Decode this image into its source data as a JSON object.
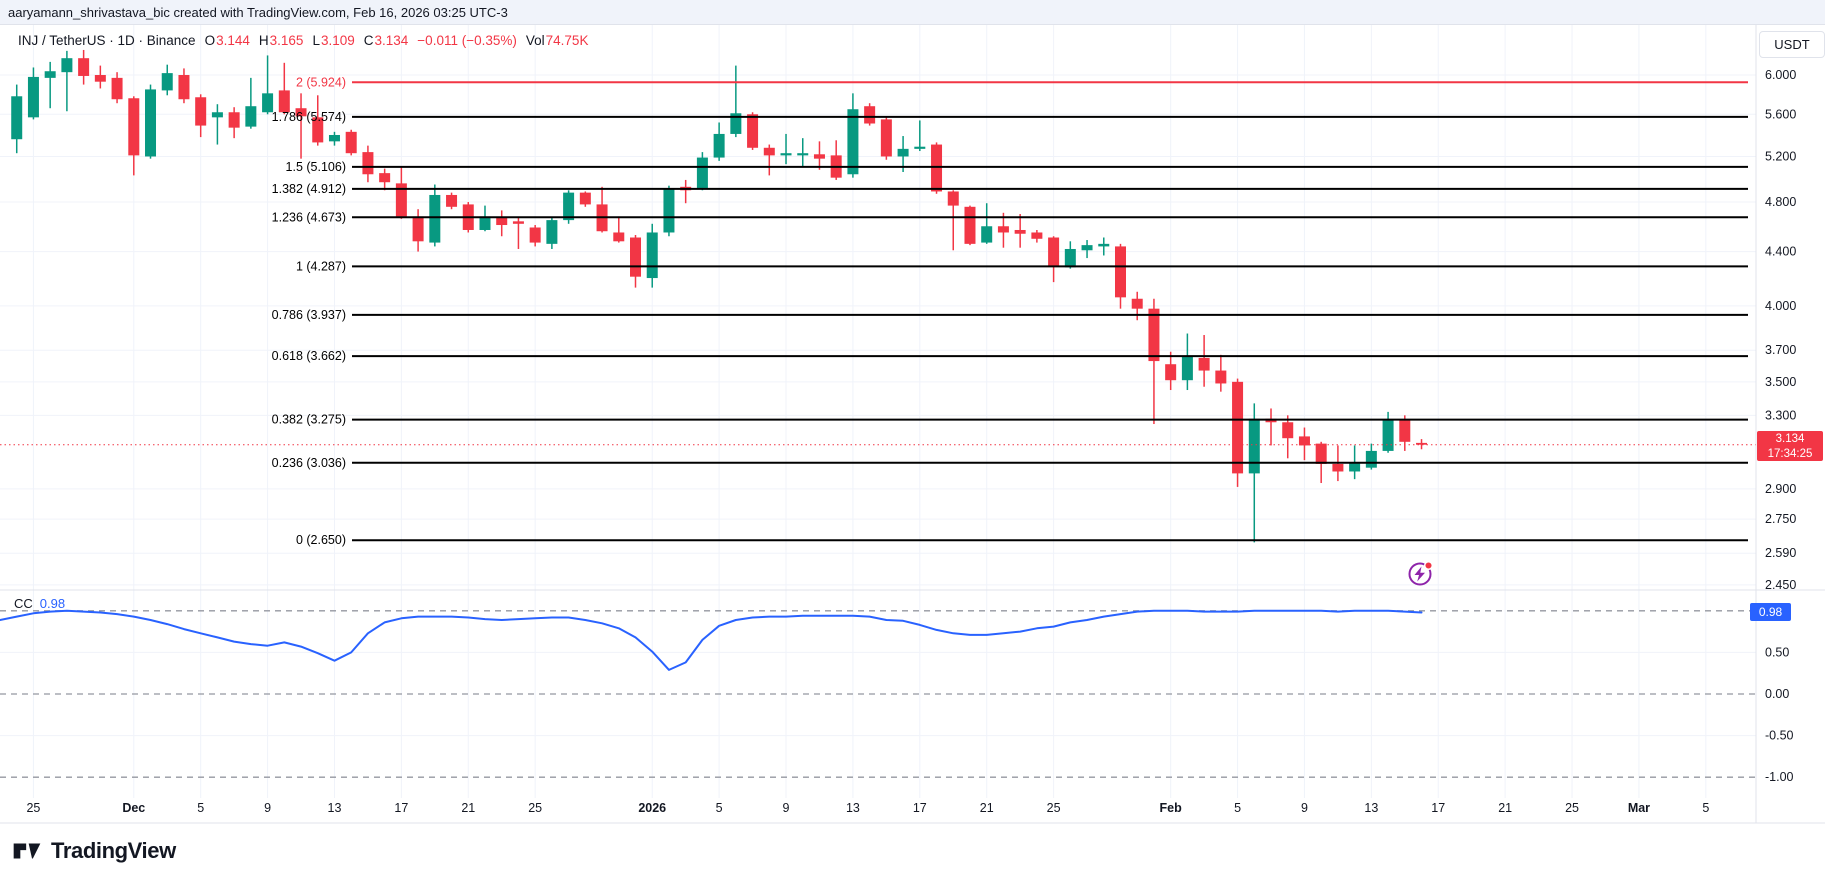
{
  "topbar": {
    "attribution": "aaryamann_shrivastava_bic created with TradingView.com, Feb 16, 2026 03:25 UTC-3"
  },
  "legend": {
    "symbol": "INJ / TetherUS · 1D · Binance",
    "o_label": "O",
    "o": "3.144",
    "h_label": "H",
    "h": "3.165",
    "l_label": "L",
    "l": "3.109",
    "c_label": "C",
    "c": "3.134",
    "change": "−0.011 (−0.35%)",
    "vol_label": "Vol",
    "vol": "74.75K"
  },
  "price_axis": {
    "currency": "USDT",
    "ticks": [
      "6.000",
      "5.600",
      "5.200",
      "4.800",
      "4.400",
      "4.000",
      "3.700",
      "3.500",
      "3.300",
      "2.900",
      "2.750",
      "2.590",
      "2.450"
    ],
    "last_price": "3.134",
    "countdown": "17:34:25"
  },
  "indicator": {
    "name": "CC",
    "value": "0.98",
    "ticks": [
      {
        "label": "0.50",
        "v": 0.5
      },
      {
        "label": "0.00",
        "v": 0.0
      },
      {
        "label": "-0.50",
        "v": -0.5
      },
      {
        "label": "-1.00",
        "v": -1.0
      }
    ],
    "dashed_levels": [
      1.0,
      0.0,
      -1.0
    ],
    "solid_grid_levels": [
      0.5,
      -0.5
    ]
  },
  "time_axis": {
    "ticks": [
      {
        "label": "25",
        "day": 1
      },
      {
        "label": "Dec",
        "day": 7,
        "bold": true
      },
      {
        "label": "5",
        "day": 11
      },
      {
        "label": "9",
        "day": 15
      },
      {
        "label": "13",
        "day": 19
      },
      {
        "label": "17",
        "day": 23
      },
      {
        "label": "21",
        "day": 27
      },
      {
        "label": "25",
        "day": 31
      },
      {
        "label": "2026",
        "day": 38,
        "bold": true
      },
      {
        "label": "5",
        "day": 42
      },
      {
        "label": "9",
        "day": 46
      },
      {
        "label": "13",
        "day": 50
      },
      {
        "label": "17",
        "day": 54
      },
      {
        "label": "21",
        "day": 58
      },
      {
        "label": "25",
        "day": 62
      },
      {
        "label": "Feb",
        "day": 69,
        "bold": true
      },
      {
        "label": "5",
        "day": 73
      },
      {
        "label": "9",
        "day": 77
      },
      {
        "label": "13",
        "day": 81
      },
      {
        "label": "17",
        "day": 85
      },
      {
        "label": "21",
        "day": 89
      },
      {
        "label": "25",
        "day": 93
      },
      {
        "label": "Mar",
        "day": 97,
        "bold": true
      },
      {
        "label": "5",
        "day": 101
      }
    ]
  },
  "chart_data": [
    {
      "type": "candlestick",
      "title": "INJ / TetherUS 1D Binance",
      "ylog": true,
      "ylim": [
        2.428,
        6.551
      ],
      "xlim_days": [
        -1,
        104
      ],
      "start_day": 0,
      "ohlc": [
        [
          5.36,
          5.9,
          5.23,
          5.78
        ],
        [
          5.57,
          6.08,
          5.55,
          5.98
        ],
        [
          5.97,
          6.14,
          5.66,
          6.04
        ],
        [
          6.03,
          6.26,
          5.63,
          6.18
        ],
        [
          6.18,
          6.27,
          5.9,
          5.99
        ],
        [
          6.0,
          6.1,
          5.86,
          5.93
        ],
        [
          5.97,
          6.03,
          5.71,
          5.75
        ],
        [
          5.76,
          5.78,
          5.03,
          5.21
        ],
        [
          5.2,
          5.9,
          5.18,
          5.85
        ],
        [
          5.84,
          6.11,
          5.79,
          6.02
        ],
        [
          6.0,
          6.07,
          5.71,
          5.75
        ],
        [
          5.77,
          5.8,
          5.38,
          5.49
        ],
        [
          5.57,
          5.7,
          5.31,
          5.62
        ],
        [
          5.62,
          5.67,
          5.37,
          5.47
        ],
        [
          5.48,
          5.97,
          5.46,
          5.68
        ],
        [
          5.62,
          6.21,
          5.6,
          5.81
        ],
        [
          5.84,
          6.13,
          5.6,
          5.62
        ],
        [
          5.66,
          5.81,
          5.18,
          5.58
        ],
        [
          5.57,
          5.79,
          5.3,
          5.33
        ],
        [
          5.34,
          5.43,
          5.3,
          5.4
        ],
        [
          5.43,
          5.45,
          5.21,
          5.23
        ],
        [
          5.24,
          5.3,
          4.97,
          5.04
        ],
        [
          5.05,
          5.09,
          4.9,
          4.97
        ],
        [
          4.96,
          5.11,
          4.66,
          4.68
        ],
        [
          4.68,
          4.74,
          4.4,
          4.48
        ],
        [
          4.47,
          4.95,
          4.44,
          4.86
        ],
        [
          4.86,
          4.88,
          4.74,
          4.76
        ],
        [
          4.78,
          4.8,
          4.55,
          4.57
        ],
        [
          4.57,
          4.77,
          4.56,
          4.68
        ],
        [
          4.67,
          4.73,
          4.52,
          4.61
        ],
        [
          4.64,
          4.67,
          4.42,
          4.62
        ],
        [
          4.59,
          4.61,
          4.44,
          4.47
        ],
        [
          4.46,
          4.67,
          4.42,
          4.65
        ],
        [
          4.65,
          4.9,
          4.62,
          4.88
        ],
        [
          4.88,
          4.89,
          4.76,
          4.78
        ],
        [
          4.78,
          4.93,
          4.55,
          4.56
        ],
        [
          4.55,
          4.68,
          4.47,
          4.48
        ],
        [
          4.51,
          4.53,
          4.13,
          4.21
        ],
        [
          4.2,
          4.62,
          4.13,
          4.55
        ],
        [
          4.55,
          4.94,
          4.52,
          4.91
        ],
        [
          4.93,
          4.99,
          4.79,
          4.9
        ],
        [
          4.92,
          5.24,
          4.9,
          5.19
        ],
        [
          5.19,
          5.52,
          5.16,
          5.41
        ],
        [
          5.41,
          6.1,
          5.38,
          5.61
        ],
        [
          5.6,
          5.62,
          5.26,
          5.28
        ],
        [
          5.28,
          5.31,
          5.03,
          5.21
        ],
        [
          5.21,
          5.41,
          5.13,
          5.23
        ],
        [
          5.21,
          5.37,
          5.11,
          5.23
        ],
        [
          5.22,
          5.34,
          5.08,
          5.18
        ],
        [
          5.21,
          5.35,
          4.99,
          5.01
        ],
        [
          5.04,
          5.81,
          5.01,
          5.65
        ],
        [
          5.68,
          5.71,
          5.49,
          5.51
        ],
        [
          5.55,
          5.57,
          5.17,
          5.2
        ],
        [
          5.2,
          5.39,
          5.06,
          5.27
        ],
        [
          5.27,
          5.54,
          5.25,
          5.29
        ],
        [
          5.31,
          5.33,
          4.87,
          4.89
        ],
        [
          4.89,
          4.9,
          4.41,
          4.77
        ],
        [
          4.76,
          4.77,
          4.45,
          4.46
        ],
        [
          4.47,
          4.79,
          4.46,
          4.6
        ],
        [
          4.6,
          4.71,
          4.43,
          4.55
        ],
        [
          4.57,
          4.7,
          4.43,
          4.54
        ],
        [
          4.55,
          4.57,
          4.47,
          4.5
        ],
        [
          4.51,
          4.52,
          4.17,
          4.29
        ],
        [
          4.28,
          4.48,
          4.27,
          4.42
        ],
        [
          4.41,
          4.49,
          4.35,
          4.45
        ],
        [
          4.44,
          4.51,
          4.37,
          4.46
        ],
        [
          4.44,
          4.46,
          3.98,
          4.06
        ],
        [
          4.05,
          4.1,
          3.9,
          3.98
        ],
        [
          3.98,
          4.05,
          3.25,
          3.63
        ],
        [
          3.61,
          3.69,
          3.45,
          3.51
        ],
        [
          3.51,
          3.81,
          3.45,
          3.66
        ],
        [
          3.65,
          3.8,
          3.47,
          3.57
        ],
        [
          3.57,
          3.67,
          3.44,
          3.49
        ],
        [
          3.5,
          3.52,
          2.91,
          2.98
        ],
        [
          2.98,
          3.37,
          2.64,
          3.28
        ],
        [
          3.28,
          3.34,
          3.13,
          3.26
        ],
        [
          3.26,
          3.3,
          3.06,
          3.17
        ],
        [
          3.18,
          3.23,
          3.05,
          3.13
        ],
        [
          3.14,
          3.15,
          2.93,
          3.03
        ],
        [
          3.03,
          3.13,
          2.94,
          2.99
        ],
        [
          2.99,
          3.13,
          2.95,
          3.04
        ],
        [
          3.01,
          3.14,
          3.0,
          3.1
        ],
        [
          3.1,
          3.32,
          3.09,
          3.27
        ],
        [
          3.27,
          3.3,
          3.1,
          3.15
        ],
        [
          3.144,
          3.165,
          3.109,
          3.134
        ]
      ],
      "price_line_value": 3.134,
      "fib_levels": [
        {
          "label": "2 (5.924)",
          "price": 5.924,
          "color": "#f23645"
        },
        {
          "label": "1.786 (5.574)",
          "price": 5.574,
          "color": "#000000"
        },
        {
          "label": "1.5 (5.106)",
          "price": 5.106,
          "color": "#000000"
        },
        {
          "label": "1.382 (4.912)",
          "price": 4.912,
          "color": "#000000"
        },
        {
          "label": "1.236 (4.673)",
          "price": 4.673,
          "color": "#000000"
        },
        {
          "label": "1 (4.287)",
          "price": 4.287,
          "color": "#000000"
        },
        {
          "label": "0.786 (3.937)",
          "price": 3.937,
          "color": "#000000"
        },
        {
          "label": "0.618 (3.662)",
          "price": 3.662,
          "color": "#000000"
        },
        {
          "label": "0.382 (3.275)",
          "price": 3.275,
          "color": "#000000"
        },
        {
          "label": "0.236 (3.036)",
          "price": 3.036,
          "color": "#000000"
        },
        {
          "label": "0 (2.650)",
          "price": 2.65,
          "color": "#000000"
        }
      ]
    },
    {
      "type": "line",
      "name": "CC",
      "ylim": [
        -1.25,
        1.25
      ],
      "start_day": -1,
      "values": [
        0.89,
        0.93,
        0.97,
        0.99,
        1.0,
        0.99,
        0.98,
        0.96,
        0.93,
        0.89,
        0.84,
        0.78,
        0.73,
        0.68,
        0.63,
        0.6,
        0.58,
        0.62,
        0.57,
        0.49,
        0.4,
        0.5,
        0.73,
        0.86,
        0.91,
        0.93,
        0.93,
        0.93,
        0.92,
        0.9,
        0.89,
        0.9,
        0.91,
        0.92,
        0.92,
        0.89,
        0.85,
        0.79,
        0.68,
        0.51,
        0.29,
        0.38,
        0.65,
        0.82,
        0.89,
        0.92,
        0.93,
        0.93,
        0.94,
        0.94,
        0.94,
        0.94,
        0.93,
        0.89,
        0.88,
        0.83,
        0.77,
        0.73,
        0.71,
        0.71,
        0.73,
        0.75,
        0.79,
        0.81,
        0.86,
        0.89,
        0.93,
        0.96,
        0.99,
        1.0,
        1.0,
        1.0,
        0.99,
        0.99,
        0.99,
        1.0,
        1.0,
        1.0,
        1.0,
        1.0,
        0.99,
        1.0,
        1.0,
        1.0,
        0.99,
        0.98
      ],
      "last_value": 0.98
    }
  ],
  "colors": {
    "up": "#089981",
    "down": "#f23645",
    "accent_blue": "#2962ff",
    "grid": "#f0f3fa",
    "separator": "#e0e3eb",
    "axis_text": "#131722",
    "muted_text": "#787b86",
    "dashed_gray": "#9598a1",
    "icon_purple": "#8e24aa",
    "dot_red": "#f23645"
  },
  "branding": {
    "logo_text": "TradingView"
  }
}
